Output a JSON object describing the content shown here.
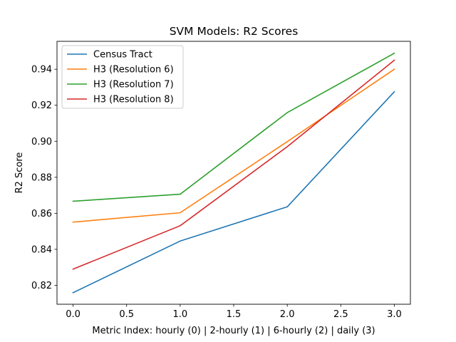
{
  "chart_data": {
    "type": "line",
    "title": "SVM Models: R2 Scores",
    "xlabel": "Metric Index: hourly (0) | 2-hourly (1) | 6-hourly (2) | daily (3)",
    "ylabel": "R2 Score",
    "x": [
      0,
      1,
      2,
      3
    ],
    "xlim": [
      -0.15,
      3.15
    ],
    "ylim": [
      0.8095,
      0.9555
    ],
    "xticks": [
      0.0,
      0.5,
      1.0,
      1.5,
      2.0,
      2.5,
      3.0
    ],
    "xtick_labels": [
      "0.0",
      "0.5",
      "1.0",
      "1.5",
      "2.0",
      "2.5",
      "3.0"
    ],
    "yticks": [
      0.82,
      0.84,
      0.86,
      0.88,
      0.9,
      0.92,
      0.94
    ],
    "ytick_labels": [
      "0.82",
      "0.84",
      "0.86",
      "0.88",
      "0.90",
      "0.92",
      "0.94"
    ],
    "grid": false,
    "legend_position": "upper-left",
    "series": [
      {
        "name": "Census Tract",
        "color": "#1f77b4",
        "values": [
          0.8159,
          0.8446,
          0.8636,
          0.9275
        ]
      },
      {
        "name": "H3 (Resolution 6)",
        "color": "#ff7f0e",
        "values": [
          0.8551,
          0.8603,
          0.8998,
          0.94
        ]
      },
      {
        "name": "H3 (Resolution 7)",
        "color": "#2ca02c",
        "values": [
          0.8667,
          0.8706,
          0.9159,
          0.9489
        ]
      },
      {
        "name": "H3 (Resolution 8)",
        "color": "#d62728",
        "values": [
          0.829,
          0.8531,
          0.897,
          0.945
        ]
      }
    ]
  }
}
